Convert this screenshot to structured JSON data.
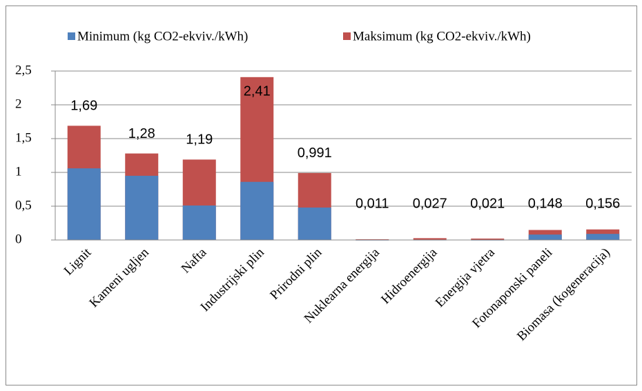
{
  "chart_data": {
    "type": "bar",
    "overlap": true,
    "categories": [
      "Lignit",
      "Kameni ugljen",
      "Nafta",
      "Industrijski plin",
      "Prirodni plin",
      "Nuklearna energija",
      "Hidroenergija",
      "Energija vjetra",
      "Fotonaponski paneli",
      "Biomasa (kogeneracija)"
    ],
    "series": [
      {
        "name": "Minimum (kg CO2-ekviv./kWh)",
        "color": "#4f81bd",
        "values": [
          1.06,
          0.95,
          0.51,
          0.86,
          0.48,
          0.003,
          0.004,
          0.003,
          0.08,
          0.09
        ]
      },
      {
        "name": "Maksimum (kg CO2-ekviv./kWh)",
        "color": "#c0504d",
        "values": [
          1.69,
          1.28,
          1.19,
          2.41,
          0.991,
          0.011,
          0.027,
          0.021,
          0.148,
          0.156
        ],
        "value_labels": [
          "1,69",
          "1,28",
          "1,19",
          "2,41",
          "0,991",
          "0,011",
          "0,027",
          "0,021",
          "0,148",
          "0,156"
        ]
      }
    ],
    "ylim": [
      0,
      2.5
    ],
    "yticks": [
      0,
      {
        "value": 0.5,
        "label": "0,5"
      },
      1,
      {
        "value": 1.5,
        "label": "1,5"
      },
      2,
      {
        "value": 2.5,
        "label": "2,5"
      }
    ],
    "grid": true,
    "legend": "top"
  }
}
